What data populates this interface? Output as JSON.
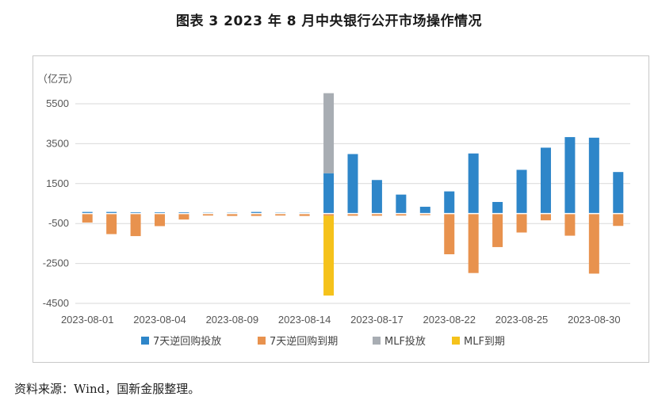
{
  "title": "图表 3  2023 年 8 月中央银行公开市场操作情况",
  "source": "资料来源：Wind，国新金服整理。",
  "colors": {
    "rr_inject": "#2E86C9",
    "rr_mature": "#E8924E",
    "mlf_inject": "#A8ADB3",
    "mlf_mature": "#F5C21B",
    "grid": "#d9d9d9",
    "axis": "#bfbfbf"
  },
  "chart_data": {
    "type": "bar",
    "stacked": true,
    "unit_label": "（亿元）",
    "ylim": [
      -4500,
      6000
    ],
    "yticks": [
      5500,
      3500,
      1500,
      -500,
      -2500,
      -4500
    ],
    "ytick_labels": [
      "5500",
      "3500",
      "1500",
      "-500",
      "-2500",
      "-4500"
    ],
    "grid": true,
    "legend_position": "bottom",
    "categories": [
      "2023-08-01",
      "2023-08-02",
      "2023-08-03",
      "2023-08-04",
      "2023-08-07",
      "2023-08-08",
      "2023-08-09",
      "2023-08-10",
      "2023-08-11",
      "2023-08-14",
      "2023-08-15",
      "2023-08-16",
      "2023-08-17",
      "2023-08-18",
      "2023-08-21",
      "2023-08-22",
      "2023-08-23",
      "2023-08-24",
      "2023-08-25",
      "2023-08-28",
      "2023-08-29",
      "2023-08-30",
      "2023-08-31"
    ],
    "xtick_labels": [
      "2023-08-01",
      "",
      "",
      "2023-08-04",
      "",
      "",
      "2023-08-09",
      "",
      "",
      "2023-08-14",
      "",
      "",
      "2023-08-17",
      "",
      "",
      "2023-08-22",
      "",
      "",
      "2023-08-25",
      "",
      "",
      "2023-08-30",
      ""
    ],
    "series": [
      {
        "name": "7天逆回购投放",
        "color_key": "rr_inject",
        "values": [
          80,
          80,
          60,
          60,
          60,
          40,
          40,
          80,
          40,
          40,
          2020,
          2980,
          1680,
          950,
          340,
          1110,
          3010,
          580,
          2190,
          3300,
          3830,
          3800,
          2080
        ]
      },
      {
        "name": "7天逆回购到期",
        "color_key": "rr_mature",
        "values": [
          -450,
          -1030,
          -1130,
          -630,
          -300,
          -100,
          -120,
          -120,
          -100,
          -120,
          -110,
          -110,
          -110,
          -100,
          -80,
          -2040,
          -2980,
          -1680,
          -950,
          -340,
          -1110,
          -3010,
          -620
        ]
      },
      {
        "name": "MLF投放",
        "color_key": "mlf_inject",
        "values": [
          0,
          0,
          0,
          0,
          0,
          0,
          0,
          0,
          0,
          0,
          4010,
          0,
          0,
          0,
          0,
          0,
          0,
          0,
          0,
          0,
          0,
          0,
          0
        ]
      },
      {
        "name": "MLF到期",
        "color_key": "mlf_mature",
        "values": [
          0,
          0,
          0,
          0,
          0,
          0,
          0,
          0,
          0,
          0,
          -4000,
          0,
          0,
          0,
          0,
          0,
          0,
          0,
          0,
          0,
          0,
          0,
          0
        ]
      }
    ]
  }
}
